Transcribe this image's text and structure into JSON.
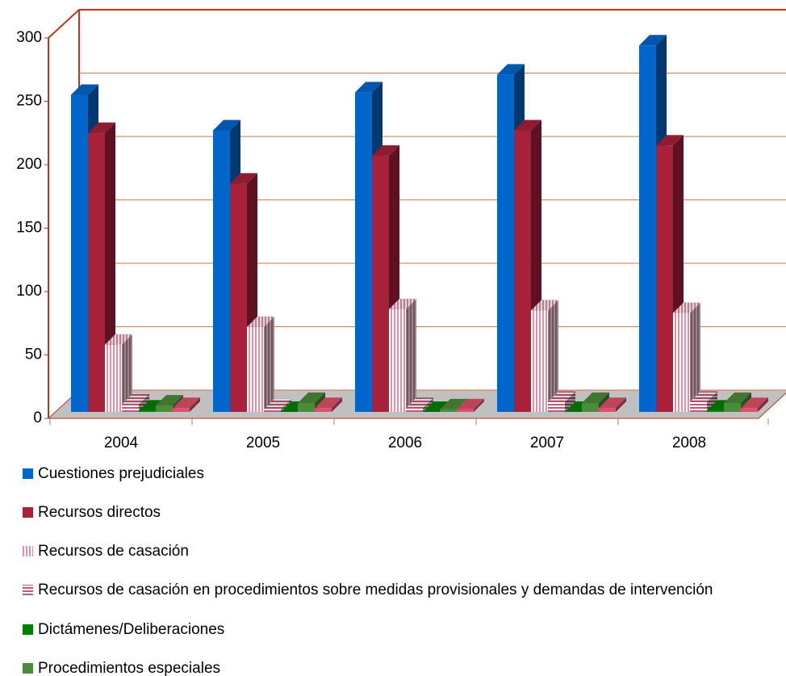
{
  "chart_data": {
    "type": "bar3d",
    "categories": [
      "2004",
      "2005",
      "2006",
      "2007",
      "2008"
    ],
    "series": [
      {
        "name": "Cuestiones prejudiciales",
        "color": "#0066cc",
        "values": [
          250,
          222,
          252,
          266,
          289
        ]
      },
      {
        "name": "Recursos directos",
        "color": "#a8203a",
        "values": [
          220,
          180,
          202,
          222,
          210
        ]
      },
      {
        "name": "Recursos de casación",
        "color": "#e090a8",
        "hatch": "vertical",
        "values": [
          53,
          67,
          81,
          80,
          78
        ]
      },
      {
        "name": "Recursos de casación en procedimientos sobre medidas provisionales y demandas de intervención",
        "color": "#c05878",
        "hatch": "horizontal",
        "values": [
          6,
          2,
          3,
          8,
          8
        ]
      },
      {
        "name": "Dictámenes/Deliberaciones",
        "color": "#008000",
        "values": [
          1,
          0,
          0,
          0,
          1
        ]
      },
      {
        "name": "Procedimientos especiales",
        "color": "#4a8c3a",
        "values": [
          5,
          7,
          2,
          7,
          7
        ]
      },
      {
        "color": "#e0506a",
        "values": [
          3,
          3,
          2,
          3,
          3
        ]
      }
    ],
    "ylim": [
      0,
      300
    ],
    "yticks": [
      0,
      50,
      100,
      150,
      200,
      250,
      300
    ],
    "grid": true
  }
}
